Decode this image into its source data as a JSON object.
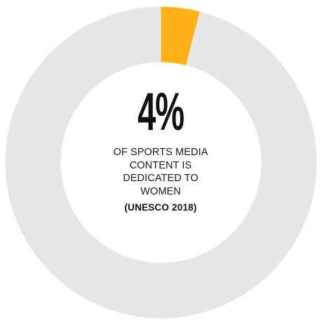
{
  "chart_data": {
    "type": "pie",
    "style": "donut",
    "values": [
      4,
      96
    ],
    "colors": [
      "#FFB116",
      "#E6E6E6"
    ],
    "center_value": "4%",
    "caption_lines": [
      "OF SPORTS MEDIA",
      "CONTENT IS",
      "DEDICATED TO",
      "WOMEN"
    ],
    "source": "(UNESCO 2018)"
  }
}
